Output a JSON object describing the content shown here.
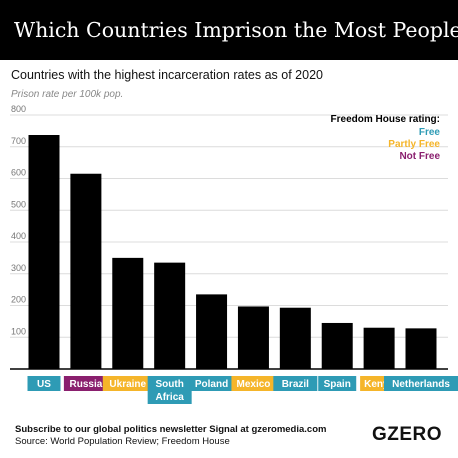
{
  "header": {
    "title": "Which Countries Imprison the Most People?"
  },
  "subtitle": "Countries with the highest incarceration rates as of 2020",
  "unit_label": "Prison rate per 100k pop.",
  "legend": {
    "title": "Freedom House rating:",
    "items": [
      {
        "label": "Free",
        "color": "#2e9bb5"
      },
      {
        "label": "Partly Free",
        "color": "#f5b52a"
      },
      {
        "label": "Not Free",
        "color": "#8a1f6e"
      }
    ]
  },
  "chart_data": {
    "type": "bar",
    "title": "Which Countries Imprison the Most People?",
    "subtitle": "Countries with the highest incarceration rates as of 2020",
    "ylabel": "Prison rate per 100k pop.",
    "xlabel": "",
    "ylim": [
      0,
      800
    ],
    "yticks": [
      100,
      200,
      300,
      400,
      500,
      600,
      700,
      800
    ],
    "grid": true,
    "legend_position": "top-right",
    "bar_color": "#000000",
    "categories": [
      "US",
      "Russia",
      "Ukraine",
      "South Africa",
      "Poland",
      "Mexico",
      "Brazil",
      "Spain",
      "Kenya",
      "Netherlands"
    ],
    "category_lines": [
      [
        "US"
      ],
      [
        "Russia"
      ],
      [
        "Ukraine"
      ],
      [
        "South",
        "Africa"
      ],
      [
        "Poland"
      ],
      [
        "Mexico"
      ],
      [
        "Brazil"
      ],
      [
        "Spain"
      ],
      [
        "Kenya"
      ],
      [
        "Netherlands"
      ]
    ],
    "ratings": [
      "Free",
      "Not Free",
      "Partly Free",
      "Free",
      "Free",
      "Partly Free",
      "Free",
      "Free",
      "Partly Free",
      "Free"
    ],
    "values": [
      737,
      615,
      350,
      335,
      235,
      197,
      193,
      145,
      130,
      128
    ]
  },
  "footer": {
    "subscribe": "Subscribe to our global politics newsletter Signal at gzeromedia.com",
    "source": "Source: World Population Review; Freedom House",
    "brand": "GZERO"
  }
}
